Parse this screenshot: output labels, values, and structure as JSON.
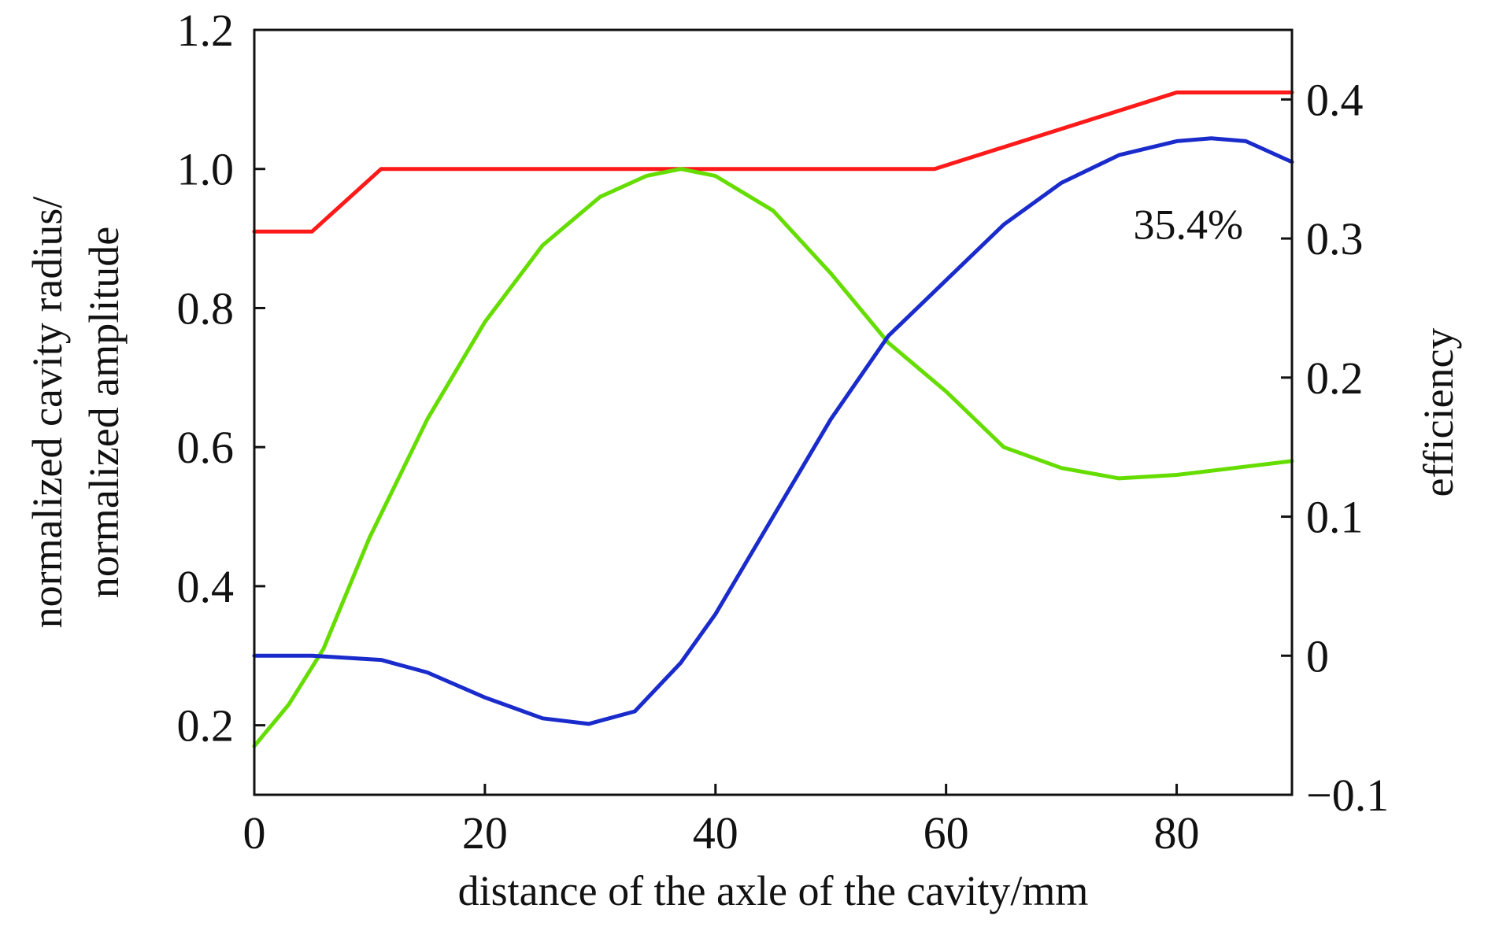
{
  "chart_data": {
    "type": "line",
    "title": "",
    "xlabel": "distance of the axle of the cavity/mm",
    "ylabel_left": [
      "normalized cavity radius/",
      "normalized amplitude"
    ],
    "ylabel_right": "efficiency",
    "xlim": [
      0,
      90
    ],
    "ylim_left": [
      0.1,
      1.2
    ],
    "ylim_right": [
      -0.1,
      0.45
    ],
    "x_ticks": [
      "0",
      "20",
      "40",
      "60",
      "80"
    ],
    "x_tick_values": [
      0,
      20,
      40,
      60,
      80
    ],
    "y_left_ticks": [
      "0.2",
      "0.4",
      "0.6",
      "0.8",
      "1.0",
      "1.2"
    ],
    "y_left_tick_values": [
      0.2,
      0.4,
      0.6,
      0.8,
      1.0,
      1.2
    ],
    "y_right_ticks": [
      "−0.1",
      "0",
      "0.1",
      "0.2",
      "0.3",
      "0.4"
    ],
    "y_right_tick_values": [
      -0.1,
      0,
      0.1,
      0.2,
      0.3,
      0.4
    ],
    "grid": false,
    "annotations": [
      {
        "text": "35.4%",
        "x": 81,
        "y_right": 0.31
      }
    ],
    "series": [
      {
        "key": "cavity_radius",
        "axis": "left",
        "color": "#ff1a1a",
        "x": [
          0,
          5,
          11,
          59,
          80,
          90
        ],
        "y": [
          0.91,
          0.91,
          1.0,
          1.0,
          1.11,
          1.11
        ]
      },
      {
        "key": "amplitude",
        "axis": "left",
        "color": "#66dd00",
        "x": [
          0,
          3,
          6,
          10,
          15,
          20,
          25,
          30,
          34,
          37,
          40,
          45,
          50,
          55,
          60,
          65,
          70,
          75,
          80,
          85,
          90
        ],
        "y": [
          0.17,
          0.23,
          0.31,
          0.47,
          0.64,
          0.78,
          0.89,
          0.96,
          0.99,
          1.0,
          0.99,
          0.94,
          0.85,
          0.75,
          0.68,
          0.6,
          0.57,
          0.555,
          0.56,
          0.57,
          0.58
        ]
      },
      {
        "key": "efficiency",
        "axis": "right",
        "color": "#1a2bcc",
        "x": [
          0,
          5,
          11,
          15,
          20,
          25,
          29,
          33,
          37,
          40,
          45,
          50,
          55,
          60,
          65,
          70,
          75,
          80,
          83,
          86,
          90
        ],
        "y": [
          0.0,
          0.0,
          -0.003,
          -0.012,
          -0.03,
          -0.045,
          -0.049,
          -0.04,
          -0.005,
          0.03,
          0.1,
          0.17,
          0.23,
          0.27,
          0.31,
          0.34,
          0.36,
          0.37,
          0.372,
          0.37,
          0.355
        ]
      }
    ]
  }
}
